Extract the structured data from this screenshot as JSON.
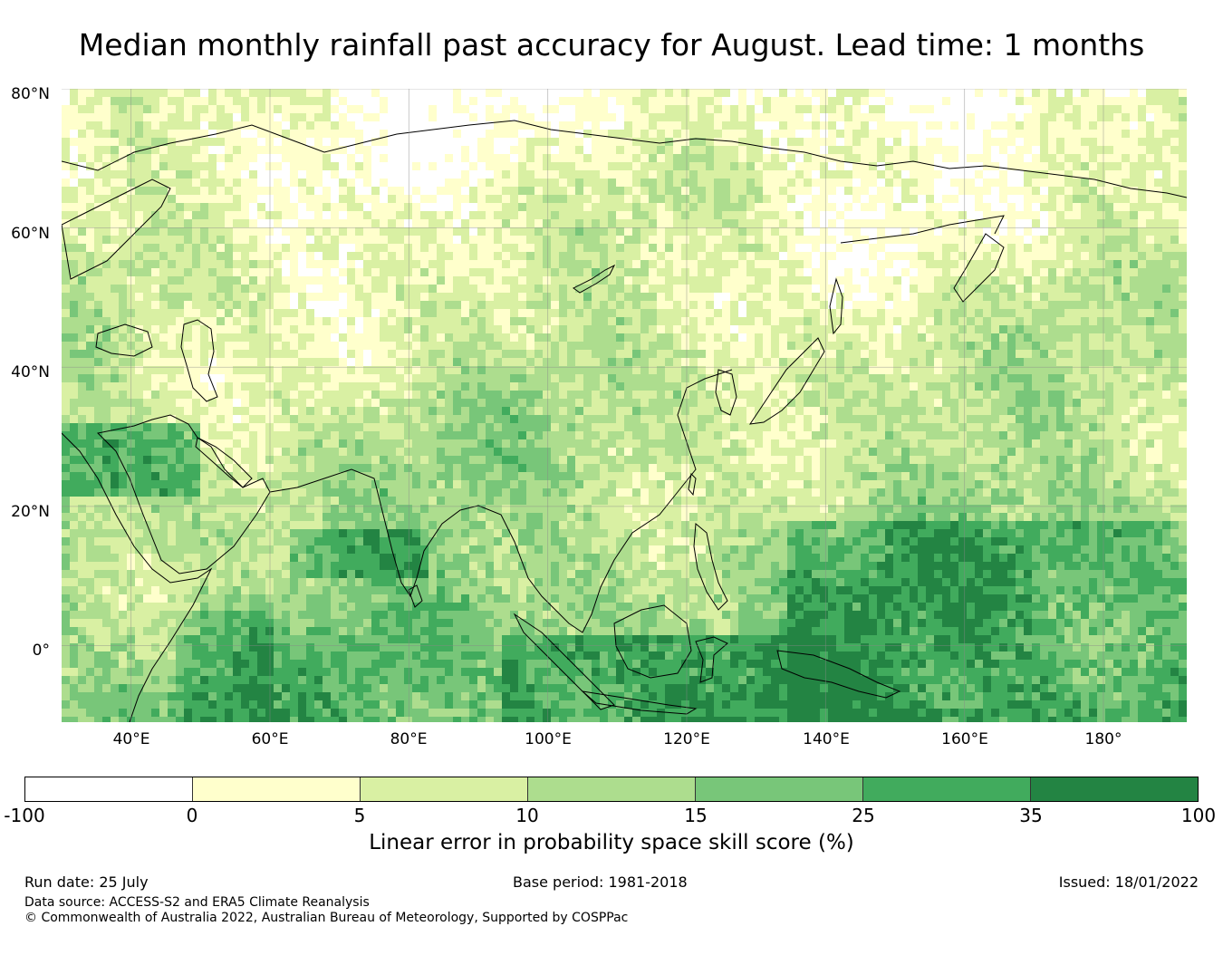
{
  "title": "Median monthly rainfall past accuracy for August. Lead time: 1 months",
  "map": {
    "lat_labels": [
      "80°N",
      "60°N",
      "40°N",
      "20°N",
      "0°"
    ],
    "lon_labels": [
      "40°E",
      "60°E",
      "80°E",
      "100°E",
      "120°E",
      "140°E",
      "160°E",
      "180°"
    ],
    "extent": {
      "lon_min": 30,
      "lon_max": 192,
      "lat_min": -11,
      "lat_max": 80
    }
  },
  "colorbar": {
    "ticks": [
      "-100",
      "0",
      "5",
      "10",
      "15",
      "25",
      "35",
      "100"
    ],
    "colors": [
      "#ffffff",
      "#ffffcc",
      "#d9f0a3",
      "#addd8e",
      "#78c679",
      "#41ab5d",
      "#238443"
    ],
    "title": "Linear error in probability space skill score (%)"
  },
  "footer": {
    "run_date": "Run date: 25 July",
    "base_period": "Base period: 1981-2018",
    "issued": "Issued: 18/01/2022",
    "data_source": "Data source: ACCESS-S2 and ERA5 Climate Reanalysis",
    "copyright": "© Commonwealth of Australia 2022, Australian Bureau of Meteorology, Supported by COSPPac"
  }
}
